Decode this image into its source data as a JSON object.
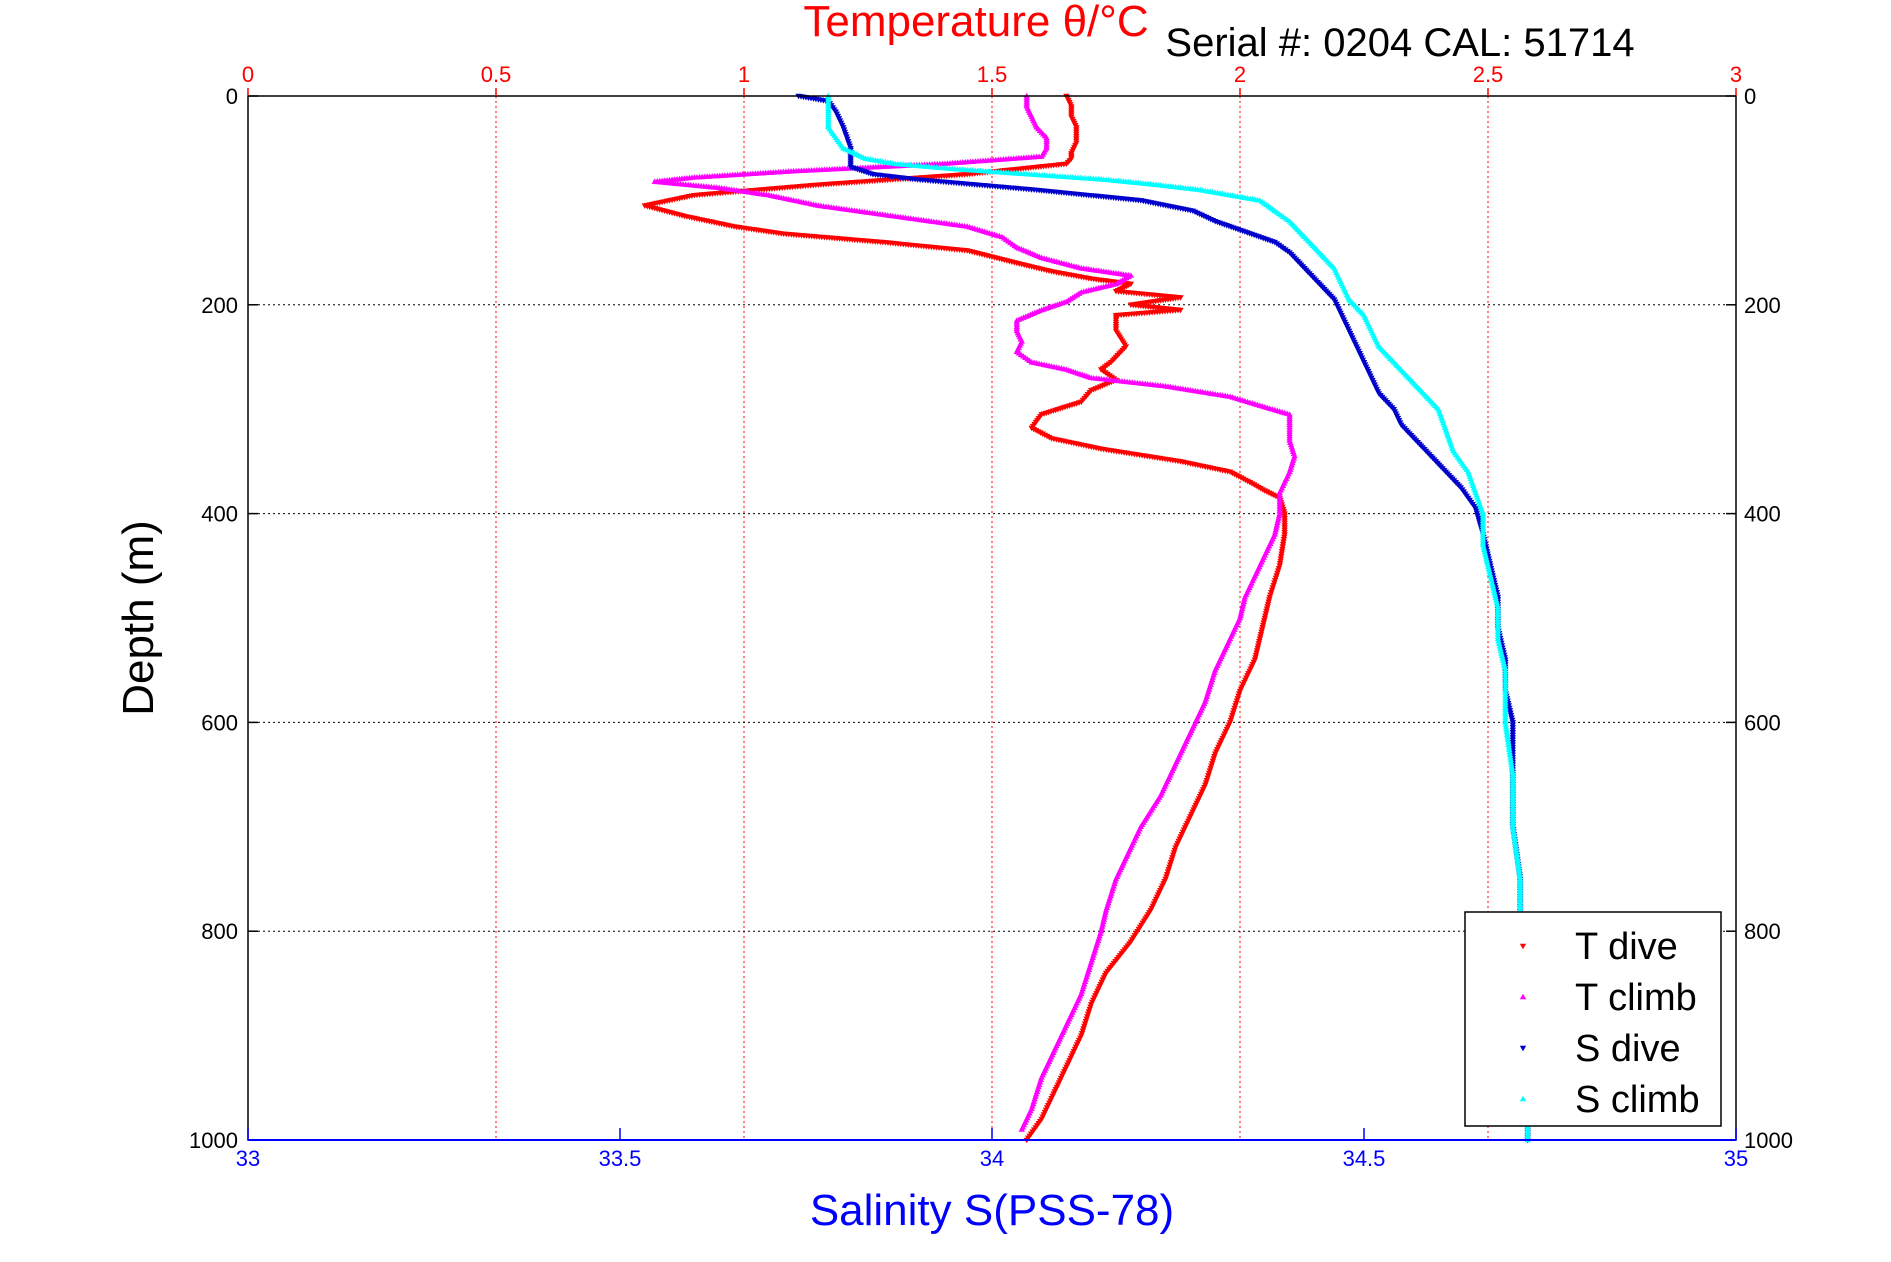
{
  "chart_data": {
    "type": "scatter",
    "header": "Serial #: 0204  CAL: 51714",
    "top_axis": {
      "label": "Temperature θ/°C",
      "range": [
        0,
        3
      ],
      "ticks": [
        0,
        0.5,
        1,
        1.5,
        2,
        2.5,
        3
      ],
      "tick_labels": [
        "0",
        "0.5",
        "1",
        "1.5",
        "2",
        "2.5",
        "3"
      ],
      "color": "#ff0000",
      "grid": true
    },
    "bottom_axis": {
      "label": "Salinity S(PSS-78)",
      "range": [
        33,
        35
      ],
      "ticks": [
        33,
        33.5,
        34,
        34.5,
        35
      ],
      "tick_labels": [
        "33",
        "33.5",
        "34",
        "34.5",
        "35"
      ],
      "color": "#0000ff"
    },
    "y_axis": {
      "label": "Depth (m)",
      "range": [
        0,
        1000
      ],
      "reversed": true,
      "ticks": [
        0,
        200,
        400,
        600,
        800,
        1000
      ],
      "tick_labels": [
        "0",
        "200",
        "400",
        "600",
        "800",
        "1000"
      ],
      "grid": true
    },
    "legend": {
      "position": "bottom-right"
    },
    "series": [
      {
        "name": "T dive",
        "axis": "temperature",
        "color": "#ff0000",
        "marker": "triangle-down",
        "points": [
          [
            1.65,
            0
          ],
          [
            1.66,
            10
          ],
          [
            1.66,
            20
          ],
          [
            1.67,
            30
          ],
          [
            1.67,
            45
          ],
          [
            1.66,
            55
          ],
          [
            1.66,
            60
          ],
          [
            1.65,
            65
          ],
          [
            1.45,
            75
          ],
          [
            1.15,
            85
          ],
          [
            0.9,
            95
          ],
          [
            0.8,
            105
          ],
          [
            0.88,
            115
          ],
          [
            0.98,
            125
          ],
          [
            1.08,
            132
          ],
          [
            1.28,
            140
          ],
          [
            1.45,
            148
          ],
          [
            1.55,
            160
          ],
          [
            1.62,
            168
          ],
          [
            1.7,
            175
          ],
          [
            1.78,
            180
          ],
          [
            1.75,
            187
          ],
          [
            1.88,
            193
          ],
          [
            1.78,
            200
          ],
          [
            1.88,
            205
          ],
          [
            1.75,
            210
          ],
          [
            1.75,
            225
          ],
          [
            1.77,
            240
          ],
          [
            1.74,
            255
          ],
          [
            1.72,
            262
          ],
          [
            1.75,
            272
          ],
          [
            1.7,
            282
          ],
          [
            1.68,
            293
          ],
          [
            1.6,
            305
          ],
          [
            1.58,
            318
          ],
          [
            1.62,
            328
          ],
          [
            1.72,
            338
          ],
          [
            1.88,
            350
          ],
          [
            1.98,
            360
          ],
          [
            2.02,
            370
          ],
          [
            2.05,
            378
          ],
          [
            2.08,
            385
          ],
          [
            2.09,
            400
          ],
          [
            2.09,
            420
          ],
          [
            2.08,
            450
          ],
          [
            2.06,
            480
          ],
          [
            2.05,
            500
          ],
          [
            2.04,
            520
          ],
          [
            2.03,
            540
          ],
          [
            2.0,
            570
          ],
          [
            1.98,
            600
          ],
          [
            1.95,
            630
          ],
          [
            1.93,
            660
          ],
          [
            1.9,
            690
          ],
          [
            1.87,
            720
          ],
          [
            1.85,
            750
          ],
          [
            1.82,
            780
          ],
          [
            1.78,
            810
          ],
          [
            1.73,
            840
          ],
          [
            1.7,
            870
          ],
          [
            1.68,
            900
          ],
          [
            1.65,
            930
          ],
          [
            1.62,
            960
          ],
          [
            1.6,
            980
          ],
          [
            1.57,
            1000
          ]
        ]
      },
      {
        "name": "T climb",
        "axis": "temperature",
        "color": "#ff00ff",
        "marker": "triangle-up",
        "points": [
          [
            1.57,
            0
          ],
          [
            1.57,
            10
          ],
          [
            1.58,
            20
          ],
          [
            1.59,
            30
          ],
          [
            1.61,
            40
          ],
          [
            1.61,
            50
          ],
          [
            1.6,
            58
          ],
          [
            1.4,
            65
          ],
          [
            1.1,
            72
          ],
          [
            0.9,
            78
          ],
          [
            0.82,
            82
          ],
          [
            0.95,
            88
          ],
          [
            1.05,
            95
          ],
          [
            1.15,
            105
          ],
          [
            1.3,
            115
          ],
          [
            1.45,
            125
          ],
          [
            1.52,
            135
          ],
          [
            1.55,
            145
          ],
          [
            1.6,
            155
          ],
          [
            1.68,
            165
          ],
          [
            1.78,
            172
          ],
          [
            1.75,
            180
          ],
          [
            1.68,
            188
          ],
          [
            1.65,
            197
          ],
          [
            1.6,
            205
          ],
          [
            1.55,
            215
          ],
          [
            1.55,
            225
          ],
          [
            1.56,
            235
          ],
          [
            1.55,
            245
          ],
          [
            1.58,
            255
          ],
          [
            1.65,
            262
          ],
          [
            1.7,
            270
          ],
          [
            1.85,
            278
          ],
          [
            1.98,
            288
          ],
          [
            2.05,
            298
          ],
          [
            2.1,
            305
          ],
          [
            2.1,
            315
          ],
          [
            2.1,
            330
          ],
          [
            2.11,
            345
          ],
          [
            2.1,
            360
          ],
          [
            2.08,
            380
          ],
          [
            2.08,
            400
          ],
          [
            2.07,
            420
          ],
          [
            2.05,
            440
          ],
          [
            2.03,
            460
          ],
          [
            2.01,
            480
          ],
          [
            2.0,
            500
          ],
          [
            1.98,
            520
          ],
          [
            1.95,
            550
          ],
          [
            1.93,
            580
          ],
          [
            1.9,
            610
          ],
          [
            1.87,
            640
          ],
          [
            1.84,
            670
          ],
          [
            1.8,
            700
          ],
          [
            1.78,
            720
          ],
          [
            1.75,
            750
          ],
          [
            1.73,
            780
          ],
          [
            1.72,
            800
          ],
          [
            1.7,
            830
          ],
          [
            1.68,
            860
          ],
          [
            1.66,
            880
          ],
          [
            1.63,
            910
          ],
          [
            1.6,
            940
          ],
          [
            1.58,
            970
          ],
          [
            1.56,
            990
          ]
        ]
      },
      {
        "name": "S dive",
        "axis": "salinity",
        "color": "#0000cc",
        "marker": "triangle-down",
        "points": [
          [
            33.74,
            0
          ],
          [
            33.78,
            5
          ],
          [
            33.79,
            15
          ],
          [
            33.8,
            30
          ],
          [
            33.81,
            50
          ],
          [
            33.81,
            60
          ],
          [
            33.81,
            68
          ],
          [
            33.84,
            75
          ],
          [
            33.9,
            80
          ],
          [
            33.98,
            85
          ],
          [
            34.06,
            90
          ],
          [
            34.13,
            95
          ],
          [
            34.2,
            100
          ],
          [
            34.27,
            110
          ],
          [
            34.3,
            120
          ],
          [
            34.34,
            130
          ],
          [
            34.38,
            140
          ],
          [
            34.4,
            150
          ],
          [
            34.42,
            165
          ],
          [
            34.44,
            180
          ],
          [
            34.46,
            195
          ],
          [
            34.47,
            210
          ],
          [
            34.48,
            225
          ],
          [
            34.49,
            240
          ],
          [
            34.5,
            255
          ],
          [
            34.51,
            270
          ],
          [
            34.52,
            285
          ],
          [
            34.54,
            300
          ],
          [
            34.55,
            315
          ],
          [
            34.57,
            330
          ],
          [
            34.59,
            345
          ],
          [
            34.61,
            360
          ],
          [
            34.63,
            375
          ],
          [
            34.65,
            395
          ],
          [
            34.66,
            420
          ],
          [
            34.67,
            450
          ],
          [
            34.68,
            480
          ],
          [
            34.68,
            510
          ],
          [
            34.69,
            540
          ],
          [
            34.69,
            570
          ],
          [
            34.7,
            600
          ],
          [
            34.7,
            650
          ],
          [
            34.7,
            700
          ],
          [
            34.71,
            750
          ],
          [
            34.71,
            800
          ],
          [
            34.71,
            850
          ],
          [
            34.72,
            900
          ],
          [
            34.72,
            950
          ],
          [
            34.72,
            1000
          ]
        ]
      },
      {
        "name": "S climb",
        "axis": "salinity",
        "color": "#00ffff",
        "marker": "triangle-up",
        "points": [
          [
            33.78,
            0
          ],
          [
            33.78,
            10
          ],
          [
            33.78,
            20
          ],
          [
            33.78,
            30
          ],
          [
            33.79,
            40
          ],
          [
            33.8,
            50
          ],
          [
            33.83,
            60
          ],
          [
            33.87,
            65
          ],
          [
            33.95,
            70
          ],
          [
            34.05,
            75
          ],
          [
            34.15,
            80
          ],
          [
            34.22,
            85
          ],
          [
            34.28,
            90
          ],
          [
            34.32,
            95
          ],
          [
            34.36,
            100
          ],
          [
            34.38,
            110
          ],
          [
            34.4,
            120
          ],
          [
            34.42,
            135
          ],
          [
            34.44,
            150
          ],
          [
            34.46,
            165
          ],
          [
            34.47,
            180
          ],
          [
            34.48,
            195
          ],
          [
            34.5,
            210
          ],
          [
            34.51,
            225
          ],
          [
            34.52,
            240
          ],
          [
            34.54,
            255
          ],
          [
            34.56,
            270
          ],
          [
            34.58,
            285
          ],
          [
            34.6,
            300
          ],
          [
            34.61,
            320
          ],
          [
            34.62,
            340
          ],
          [
            34.64,
            360
          ],
          [
            34.65,
            380
          ],
          [
            34.66,
            400
          ],
          [
            34.66,
            430
          ],
          [
            34.67,
            460
          ],
          [
            34.68,
            490
          ],
          [
            34.68,
            520
          ],
          [
            34.69,
            550
          ],
          [
            34.69,
            600
          ],
          [
            34.7,
            650
          ],
          [
            34.7,
            700
          ],
          [
            34.71,
            750
          ],
          [
            34.71,
            800
          ],
          [
            34.71,
            850
          ],
          [
            34.72,
            900
          ],
          [
            34.72,
            950
          ],
          [
            34.72,
            1000
          ]
        ]
      }
    ]
  }
}
